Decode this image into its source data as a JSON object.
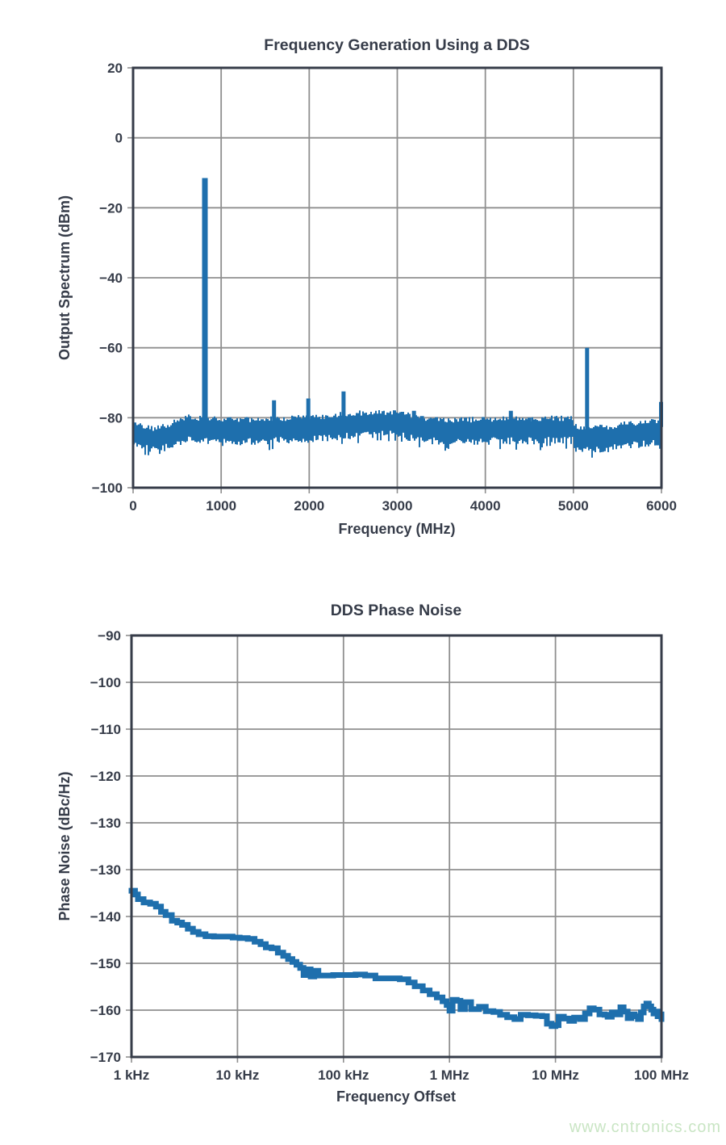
{
  "style": {
    "series_blue": "#1e6fad",
    "text_color": "#363c49",
    "grid_color": "#8f8f8f",
    "frame_color": "#363c49",
    "background": "#ffffff"
  },
  "watermark": {
    "text": "www.cntronics.com",
    "color": "#c9e5c4"
  },
  "chart_data": [
    {
      "type": "line",
      "subtype": "spectrum",
      "title": "Frequency Generation Using a DDS",
      "xlabel": "Frequency (MHz)",
      "ylabel": "Output Spectrum (dBm)",
      "xlim": [
        0,
        6000
      ],
      "ylim": [
        -100,
        20
      ],
      "grid": true,
      "legend": null,
      "xticks": [
        0,
        1000,
        2000,
        3000,
        4000,
        5000,
        6000
      ],
      "xtick_labels": [
        "0",
        "1000",
        "2000",
        "3000",
        "4000",
        "5000",
        "6000"
      ],
      "yticks": [
        20,
        0,
        -20,
        -40,
        -60,
        -80,
        -100
      ],
      "ytick_labels": [
        "20",
        "0",
        "−20",
        "−40",
        "−60",
        "−80",
        "−100"
      ],
      "noise_floor": {
        "description": "dense noise band, mid level in dBm vs MHz",
        "band_half_width_db": 2.2,
        "jitter_db": 1.6,
        "seed": 42,
        "envelope": [
          [
            0,
            -84.5
          ],
          [
            120,
            -85.3
          ],
          [
            220,
            -86.0
          ],
          [
            320,
            -85.6
          ],
          [
            420,
            -84.8
          ],
          [
            520,
            -83.6
          ],
          [
            600,
            -82.8
          ],
          [
            700,
            -83.0
          ],
          [
            850,
            -83.2
          ],
          [
            1000,
            -83.4
          ],
          [
            1200,
            -83.6
          ],
          [
            1400,
            -83.4
          ],
          [
            1600,
            -83.2
          ],
          [
            1800,
            -83.1
          ],
          [
            2000,
            -82.9
          ],
          [
            2200,
            -82.6
          ],
          [
            2400,
            -82.0
          ],
          [
            2600,
            -81.6
          ],
          [
            2800,
            -81.4
          ],
          [
            3000,
            -81.6
          ],
          [
            3100,
            -82.2
          ],
          [
            3200,
            -82.8
          ],
          [
            3400,
            -83.3
          ],
          [
            3600,
            -83.6
          ],
          [
            3800,
            -83.6
          ],
          [
            4000,
            -83.4
          ],
          [
            4200,
            -83.2
          ],
          [
            4400,
            -83.3
          ],
          [
            4600,
            -83.3
          ],
          [
            4800,
            -83.1
          ],
          [
            4990,
            -83.2
          ],
          [
            5010,
            -85.5
          ],
          [
            5200,
            -85.9
          ],
          [
            5400,
            -85.6
          ],
          [
            5600,
            -84.7
          ],
          [
            5800,
            -84.2
          ],
          [
            5950,
            -83.9
          ],
          [
            6000,
            -83.6
          ]
        ]
      },
      "spurs_mhz_dbm": [
        [
          550,
          -80.5
        ],
        [
          815,
          -11.5
        ],
        [
          1600,
          -75
        ],
        [
          1990,
          -74.5
        ],
        [
          2390,
          -72.5
        ],
        [
          3190,
          -78
        ],
        [
          3280,
          -79.5
        ],
        [
          4290,
          -78
        ],
        [
          4500,
          -80
        ],
        [
          5155,
          -60
        ],
        [
          5995,
          -75.5
        ]
      ]
    },
    {
      "type": "line",
      "subtype": "phase_noise",
      "title": "DDS Phase Noise",
      "xlabel": "Frequency Offset",
      "ylabel": "Phase Noise (dBc/Hz)",
      "x_scale": "log",
      "xlim_hz": [
        1000,
        100000000
      ],
      "grid": true,
      "legend": null,
      "xticks_hz": [
        1000,
        10000,
        100000,
        1000000,
        10000000,
        100000000
      ],
      "xtick_labels": [
        "1 kHz",
        "10 kHz",
        "100 kHz",
        "1 MHz",
        "10 MHz",
        "100 MHz"
      ],
      "ytick_labels": [
        "−90",
        "−100",
        "−110",
        "−120",
        "−130",
        "−130",
        "−140",
        "−150",
        "−160",
        "−170"
      ],
      "ytick_note": "axis printed with duplicate −130 label: 10 labels over 9 equal intervals",
      "points_hz_dbc": [
        [
          1000,
          -134.5
        ],
        [
          1080,
          -135.3
        ],
        [
          1150,
          -136.3
        ],
        [
          1300,
          -137.0
        ],
        [
          1500,
          -137.3
        ],
        [
          1700,
          -137.9
        ],
        [
          1900,
          -139.0
        ],
        [
          2100,
          -139.7
        ],
        [
          2400,
          -140.9
        ],
        [
          2700,
          -141.3
        ],
        [
          3000,
          -141.8
        ],
        [
          3400,
          -142.6
        ],
        [
          3800,
          -143.3
        ],
        [
          4300,
          -143.8
        ],
        [
          5000,
          -144.2
        ],
        [
          6000,
          -144.3
        ],
        [
          7500,
          -144.3
        ],
        [
          9000,
          -144.5
        ],
        [
          10500,
          -144.6
        ],
        [
          12500,
          -144.8
        ],
        [
          14500,
          -145.4
        ],
        [
          16500,
          -145.9
        ],
        [
          18500,
          -146.6
        ],
        [
          21000,
          -146.8
        ],
        [
          24000,
          -147.7
        ],
        [
          27000,
          -148.4
        ],
        [
          30000,
          -149.1
        ],
        [
          33000,
          -149.7
        ],
        [
          36000,
          -150.3
        ],
        [
          39000,
          -151.0
        ],
        [
          42000,
          -152.5
        ],
        [
          45000,
          -151.3
        ],
        [
          49000,
          -152.8
        ],
        [
          53000,
          -151.6
        ],
        [
          58000,
          -152.6
        ],
        [
          66000,
          -152.6
        ],
        [
          80000,
          -152.5
        ],
        [
          100000,
          -152.5
        ],
        [
          130000,
          -152.4
        ],
        [
          160000,
          -152.6
        ],
        [
          200000,
          -153.2
        ],
        [
          270000,
          -153.2
        ],
        [
          340000,
          -153.4
        ],
        [
          410000,
          -154.1
        ],
        [
          470000,
          -154.9
        ],
        [
          560000,
          -155.8
        ],
        [
          650000,
          -156.6
        ],
        [
          760000,
          -157.3
        ],
        [
          860000,
          -158.1
        ],
        [
          940000,
          -158.9
        ],
        [
          1000000,
          -160.1
        ],
        [
          1070000,
          -157.8
        ],
        [
          1170000,
          -158.0
        ],
        [
          1270000,
          -159.8
        ],
        [
          1400000,
          -158.3
        ],
        [
          1600000,
          -159.8
        ],
        [
          1900000,
          -159.3
        ],
        [
          2200000,
          -160.2
        ],
        [
          2600000,
          -160.4
        ],
        [
          3000000,
          -161.0
        ],
        [
          3500000,
          -161.5
        ],
        [
          4100000,
          -161.9
        ],
        [
          4700000,
          -161.0
        ],
        [
          5500000,
          -161.1
        ],
        [
          6500000,
          -161.2
        ],
        [
          7500000,
          -161.3
        ],
        [
          8300000,
          -162.9
        ],
        [
          9200000,
          -163.4
        ],
        [
          10000000,
          -163.2
        ],
        [
          10700000,
          -161.4
        ],
        [
          12000000,
          -161.8
        ],
        [
          13500000,
          -162.3
        ],
        [
          15000000,
          -161.6
        ],
        [
          17000000,
          -161.9
        ],
        [
          19000000,
          -160.7
        ],
        [
          21000000,
          -159.6
        ],
        [
          23000000,
          -159.9
        ],
        [
          26000000,
          -160.9
        ],
        [
          29000000,
          -161.0
        ],
        [
          31000000,
          -161.4
        ],
        [
          34000000,
          -160.5
        ],
        [
          37000000,
          -160.9
        ],
        [
          41000000,
          -159.4
        ],
        [
          44000000,
          -160.3
        ],
        [
          48000000,
          -161.7
        ],
        [
          52000000,
          -160.9
        ],
        [
          56000000,
          -161.3
        ],
        [
          60000000,
          -161.9
        ],
        [
          64000000,
          -160.5
        ],
        [
          68000000,
          -159.2
        ],
        [
          72000000,
          -158.6
        ],
        [
          76000000,
          -159.2
        ],
        [
          80000000,
          -159.9
        ],
        [
          84000000,
          -160.7
        ],
        [
          88000000,
          -160.3
        ],
        [
          92000000,
          -161.3
        ],
        [
          96000000,
          -160.9
        ],
        [
          100000000,
          -161.9
        ]
      ]
    }
  ]
}
